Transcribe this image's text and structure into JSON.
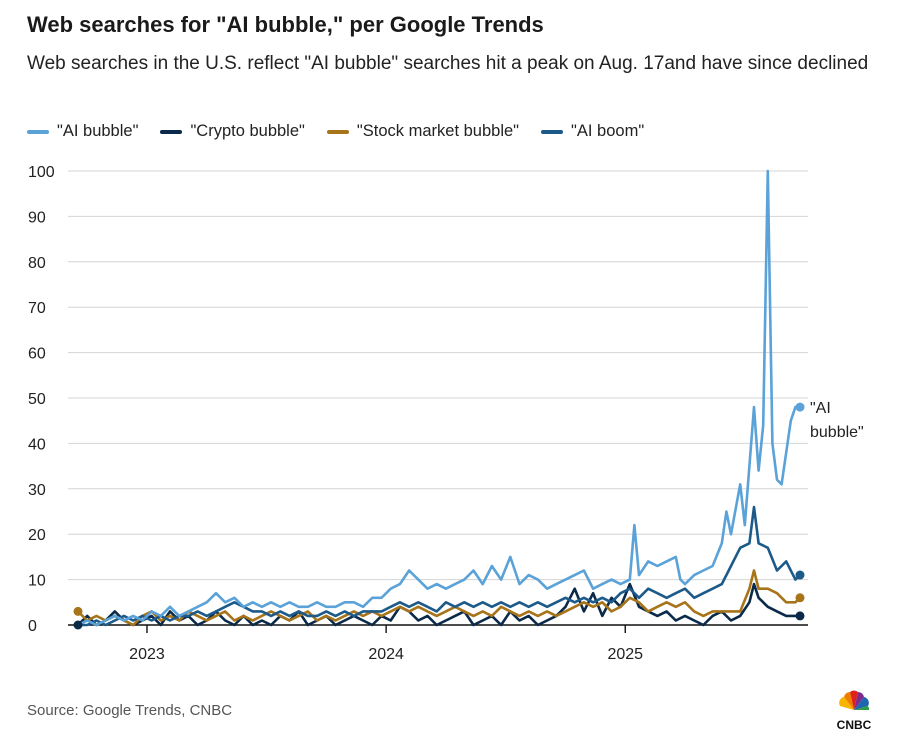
{
  "title": "Web searches for \"AI bubble,\" per Google Trends",
  "subtitle": "Web searches in the U.S. reflect \"AI bubble\" searches hit a peak on Aug. 17and have since declined",
  "source": "Source: Google Trends, CNBC",
  "logo_text": "CNBC",
  "chart_data": {
    "type": "line",
    "title": "Web searches for \"AI bubble,\" per Google Trends",
    "xlabel": "",
    "ylabel": "",
    "ylim": [
      0,
      100
    ],
    "yticks": [
      0,
      10,
      20,
      30,
      40,
      50,
      60,
      70,
      80,
      90,
      100
    ],
    "ytick_labels": [
      "0",
      "10",
      "20",
      "30",
      "40",
      "50",
      "60",
      "70",
      "80",
      "90",
      "100"
    ],
    "xtick_labels": [
      "2023",
      "2024",
      "2025"
    ],
    "xtick_positions_week": [
      15,
      67,
      119
    ],
    "x_unit": "weeks since Sep 2022",
    "legend_position": "top-left",
    "end_label_line1": "\"AI",
    "end_label_line2": "bubble\"",
    "series": [
      {
        "name": "\"AI bubble\"",
        "color": "#5aa2d8",
        "x": [
          0,
          2,
          4,
          8,
          10,
          12,
          14,
          16,
          18,
          20,
          22,
          24,
          26,
          28,
          30,
          32,
          34,
          36,
          38,
          40,
          42,
          44,
          46,
          48,
          50,
          52,
          54,
          56,
          58,
          60,
          62,
          64,
          66,
          68,
          70,
          72,
          74,
          76,
          78,
          80,
          82,
          84,
          86,
          88,
          90,
          92,
          94,
          95,
          96,
          98,
          100,
          102,
          104,
          106,
          108,
          110,
          112,
          114,
          116,
          118,
          120,
          121,
          122,
          124,
          126,
          128,
          130,
          131,
          132,
          134,
          136,
          138,
          140,
          141,
          142,
          144,
          145,
          146,
          147,
          148,
          149,
          150,
          151,
          152,
          153,
          154,
          155,
          156,
          157
        ],
        "values": [
          0,
          1,
          0,
          2,
          1,
          2,
          1,
          3,
          2,
          4,
          2,
          3,
          4,
          5,
          7,
          5,
          6,
          4,
          5,
          4,
          5,
          4,
          5,
          4,
          4,
          5,
          4,
          4,
          5,
          5,
          4,
          6,
          6,
          8,
          9,
          12,
          10,
          8,
          9,
          8,
          9,
          10,
          12,
          9,
          13,
          10,
          15,
          12,
          9,
          11,
          10,
          8,
          9,
          10,
          11,
          12,
          8,
          9,
          10,
          9,
          10,
          22,
          11,
          14,
          13,
          14,
          15,
          10,
          9,
          11,
          12,
          13,
          18,
          25,
          20,
          31,
          22,
          35,
          48,
          34,
          44,
          100,
          40,
          32,
          31,
          38,
          45,
          48,
          48
        ]
      },
      {
        "name": "\"Crypto bubble\"",
        "color": "#0b2a4a",
        "x": [
          0,
          2,
          4,
          6,
          8,
          10,
          12,
          14,
          16,
          18,
          20,
          22,
          24,
          26,
          28,
          30,
          32,
          34,
          36,
          38,
          40,
          42,
          44,
          46,
          48,
          50,
          52,
          54,
          56,
          58,
          60,
          62,
          64,
          66,
          68,
          70,
          72,
          74,
          76,
          78,
          80,
          82,
          84,
          86,
          88,
          90,
          92,
          94,
          96,
          98,
          100,
          102,
          104,
          106,
          108,
          110,
          112,
          114,
          116,
          118,
          120,
          122,
          124,
          126,
          128,
          130,
          132,
          134,
          136,
          138,
          140,
          142,
          144,
          146,
          147,
          148,
          150,
          152,
          154,
          156,
          157
        ],
        "values": [
          0,
          2,
          0,
          1,
          3,
          1,
          0,
          1,
          2,
          0,
          3,
          1,
          2,
          0,
          1,
          3,
          1,
          0,
          2,
          0,
          1,
          0,
          2,
          1,
          3,
          0,
          1,
          2,
          0,
          1,
          2,
          1,
          0,
          2,
          1,
          4,
          3,
          1,
          2,
          0,
          1,
          2,
          3,
          0,
          1,
          2,
          0,
          3,
          1,
          2,
          0,
          1,
          2,
          4,
          8,
          3,
          7,
          2,
          6,
          4,
          9,
          4,
          3,
          2,
          3,
          1,
          2,
          1,
          0,
          2,
          3,
          1,
          2,
          5,
          9,
          6,
          4,
          3,
          2,
          2,
          2
        ]
      },
      {
        "name": "\"Stock market bubble\"",
        "color": "#a8741a",
        "x": [
          0,
          2,
          4,
          6,
          8,
          10,
          12,
          14,
          16,
          18,
          20,
          22,
          24,
          26,
          28,
          30,
          32,
          34,
          36,
          38,
          40,
          42,
          44,
          46,
          48,
          50,
          52,
          54,
          56,
          58,
          60,
          62,
          64,
          66,
          68,
          70,
          72,
          74,
          76,
          78,
          80,
          82,
          84,
          86,
          88,
          90,
          92,
          94,
          96,
          98,
          100,
          102,
          104,
          106,
          108,
          110,
          112,
          114,
          116,
          118,
          120,
          122,
          124,
          126,
          128,
          130,
          132,
          134,
          136,
          138,
          140,
          142,
          144,
          146,
          147,
          148,
          150,
          152,
          154,
          156,
          157
        ],
        "values": [
          3,
          1,
          2,
          1,
          2,
          1,
          0,
          2,
          3,
          1,
          2,
          1,
          3,
          2,
          1,
          2,
          3,
          1,
          2,
          1,
          2,
          3,
          2,
          1,
          2,
          3,
          1,
          2,
          1,
          2,
          3,
          2,
          3,
          2,
          3,
          4,
          3,
          4,
          3,
          2,
          3,
          4,
          3,
          2,
          3,
          2,
          4,
          3,
          2,
          3,
          2,
          3,
          2,
          3,
          4,
          5,
          4,
          5,
          3,
          4,
          6,
          5,
          3,
          4,
          5,
          4,
          5,
          3,
          2,
          3,
          3,
          3,
          3,
          8,
          12,
          8,
          8,
          7,
          5,
          5,
          6
        ]
      },
      {
        "name": "\"AI boom\"",
        "color": "#1c5a8a",
        "x": [
          0,
          2,
          4,
          6,
          8,
          10,
          12,
          14,
          16,
          18,
          20,
          22,
          24,
          26,
          28,
          30,
          32,
          34,
          36,
          38,
          40,
          42,
          44,
          46,
          48,
          50,
          52,
          54,
          56,
          58,
          60,
          62,
          64,
          66,
          68,
          70,
          72,
          74,
          76,
          78,
          80,
          82,
          84,
          86,
          88,
          90,
          92,
          94,
          96,
          98,
          100,
          102,
          104,
          106,
          108,
          110,
          112,
          114,
          116,
          118,
          120,
          122,
          124,
          126,
          128,
          130,
          132,
          134,
          136,
          138,
          140,
          142,
          144,
          146,
          147,
          148,
          150,
          152,
          154,
          156,
          157
        ],
        "values": [
          0,
          0,
          1,
          0,
          1,
          2,
          1,
          2,
          1,
          2,
          1,
          2,
          2,
          3,
          2,
          3,
          4,
          5,
          4,
          3,
          3,
          2,
          3,
          2,
          3,
          2,
          2,
          3,
          2,
          3,
          2,
          3,
          3,
          3,
          4,
          5,
          4,
          5,
          4,
          3,
          5,
          4,
          5,
          4,
          5,
          4,
          5,
          4,
          5,
          4,
          5,
          4,
          5,
          6,
          5,
          6,
          5,
          6,
          5,
          7,
          8,
          6,
          8,
          7,
          6,
          7,
          8,
          6,
          7,
          8,
          9,
          13,
          17,
          18,
          26,
          18,
          17,
          12,
          14,
          10,
          11
        ]
      }
    ]
  }
}
